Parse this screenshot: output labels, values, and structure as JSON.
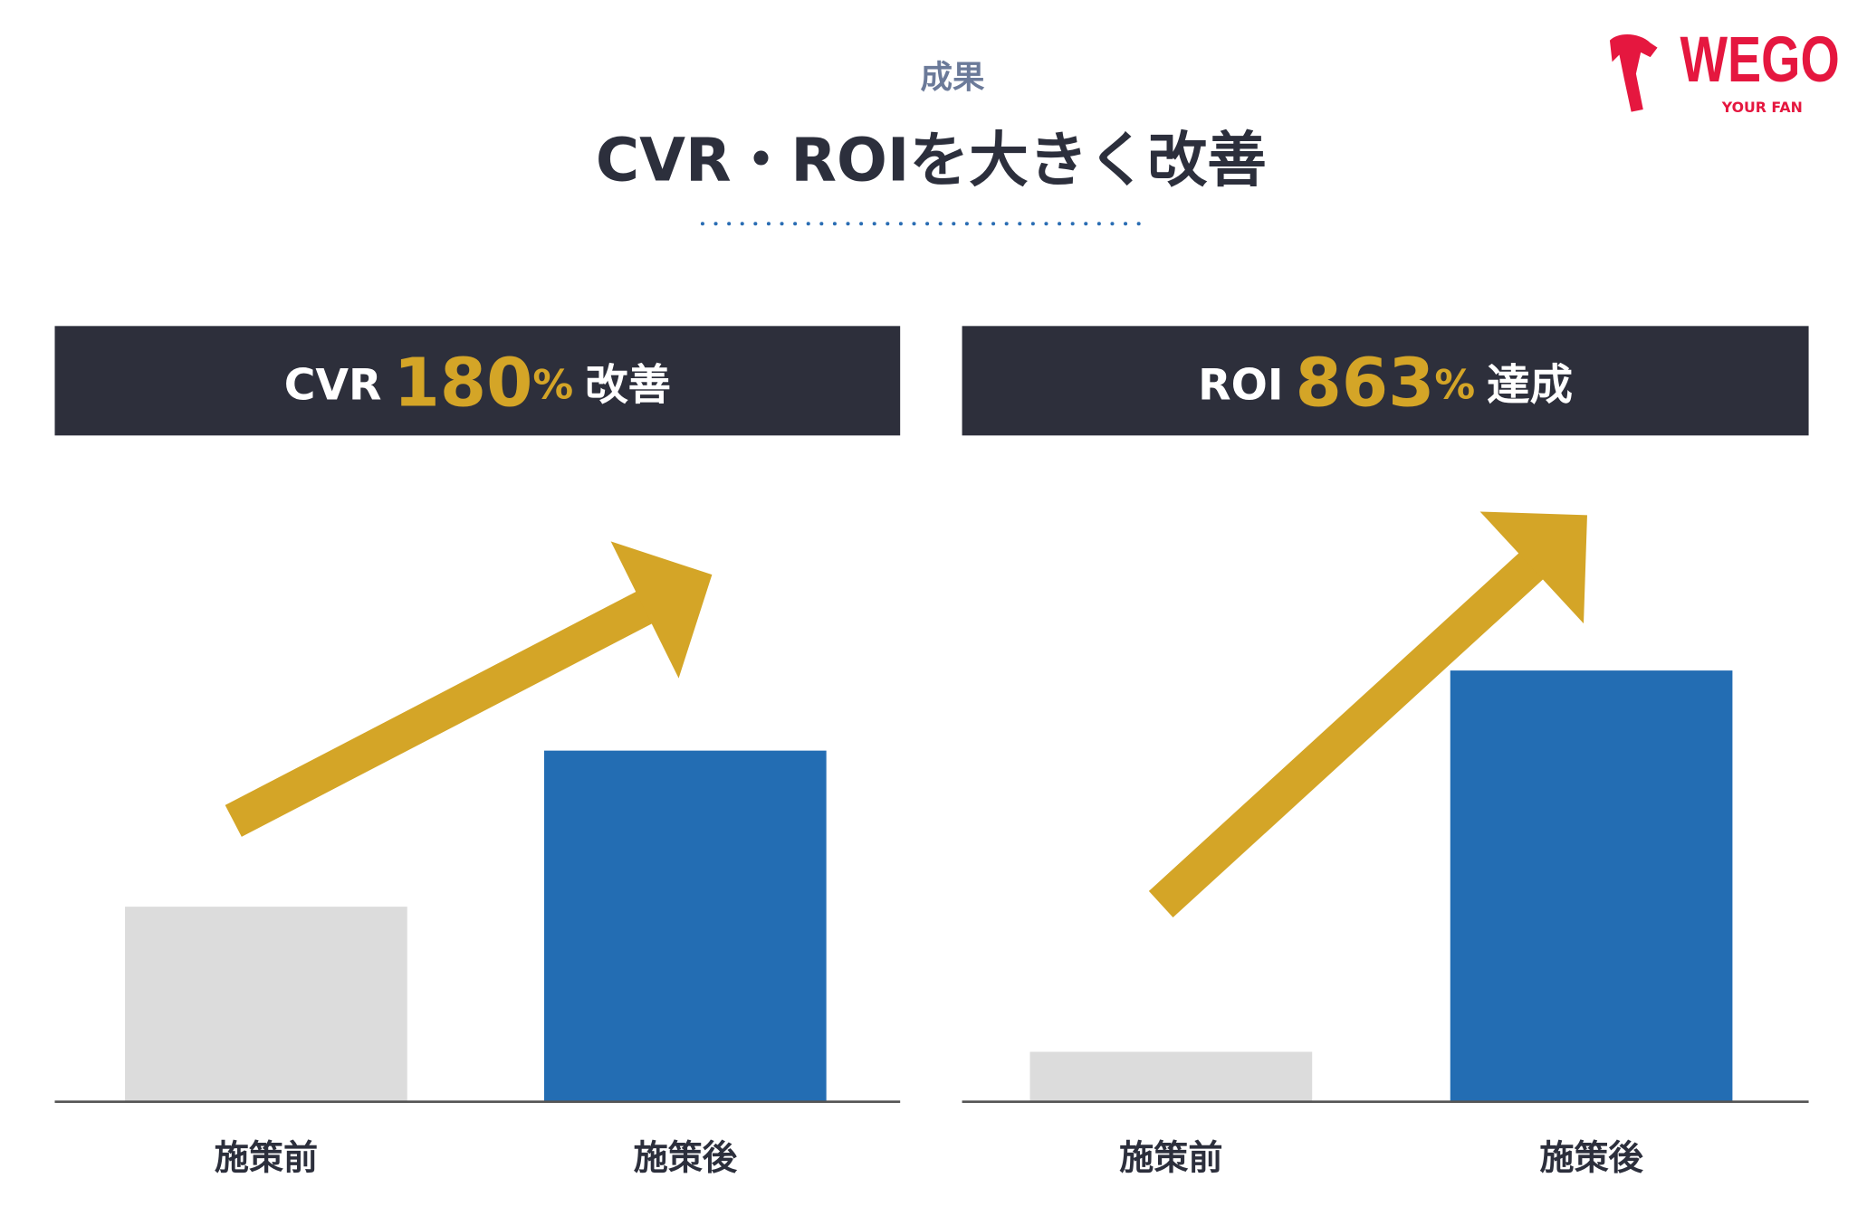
{
  "header": {
    "section": "成果",
    "title": "CVR・ROIを大きく改善"
  },
  "logo": {
    "name": "WEGO",
    "tagline": "YOUR FAN"
  },
  "chart_data": [
    {
      "type": "bar",
      "title": {
        "metric": "CVR",
        "number": "180",
        "unit": "%",
        "suffix": "改善"
      },
      "categories": [
        "施策前",
        "施策後"
      ],
      "values": [
        100,
        180
      ],
      "colors": [
        "#dcdcdc",
        "#236db3"
      ],
      "ylim": [
        0,
        333
      ]
    },
    {
      "type": "bar",
      "title": {
        "metric": "ROI",
        "number": "863",
        "unit": "%",
        "suffix": "達成"
      },
      "categories": [
        "施策前",
        "施策後"
      ],
      "values": [
        100,
        863
      ],
      "colors": [
        "#dcdcdc",
        "#236db3"
      ],
      "ylim": [
        0,
        1300
      ]
    }
  ]
}
